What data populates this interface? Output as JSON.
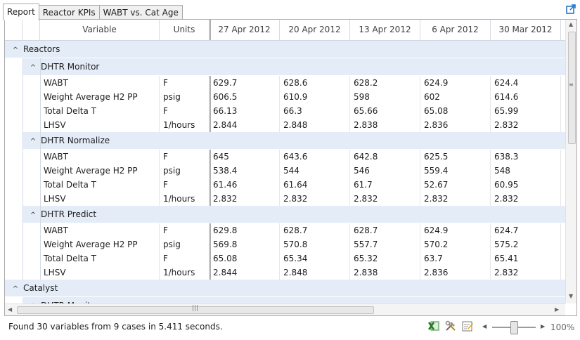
{
  "tabs": [
    {
      "label": "Report",
      "active": true
    },
    {
      "label": "Reactor KPIs",
      "active": false
    },
    {
      "label": "WABT vs. Cat Age",
      "active": false
    }
  ],
  "popout_icon": "popout-icon",
  "columns": {
    "variable": "Variable",
    "units": "Units",
    "dates": [
      "27 Apr 2012",
      "20 Apr 2012",
      "13 Apr 2012",
      "6 Apr 2012",
      "30 Mar 2012"
    ]
  },
  "groups": [
    {
      "label": "Reactors",
      "subgroups": [
        {
          "label": "DHTR Monitor",
          "rows": [
            {
              "variable": "WABT",
              "units": "F",
              "values": [
                "629.7",
                "628.6",
                "628.2",
                "624.9",
                "624.4"
              ]
            },
            {
              "variable": "Weight Average H2 PP",
              "units": "psig",
              "values": [
                "606.5",
                "610.9",
                "598",
                "602",
                "614.6"
              ]
            },
            {
              "variable": "Total Delta T",
              "units": "F",
              "values": [
                "66.13",
                "66.3",
                "65.66",
                "65.08",
                "65.99"
              ]
            },
            {
              "variable": "LHSV",
              "units": "1/hours",
              "values": [
                "2.844",
                "2.848",
                "2.838",
                "2.836",
                "2.832"
              ]
            }
          ]
        },
        {
          "label": "DHTR Normalize",
          "rows": [
            {
              "variable": "WABT",
              "units": "F",
              "values": [
                "645",
                "643.6",
                "642.8",
                "625.5",
                "638.3"
              ]
            },
            {
              "variable": "Weight Average H2 PP",
              "units": "psig",
              "values": [
                "538.4",
                "544",
                "546",
                "559.4",
                "548"
              ]
            },
            {
              "variable": "Total Delta T",
              "units": "F",
              "values": [
                "61.46",
                "61.64",
                "61.7",
                "52.67",
                "60.95"
              ]
            },
            {
              "variable": "LHSV",
              "units": "1/hours",
              "values": [
                "2.832",
                "2.832",
                "2.832",
                "2.832",
                "2.832"
              ]
            }
          ]
        },
        {
          "label": "DHTR Predict",
          "rows": [
            {
              "variable": "WABT",
              "units": "F",
              "values": [
                "629.8",
                "628.7",
                "628.7",
                "624.9",
                "624.7"
              ]
            },
            {
              "variable": "Weight Average H2 PP",
              "units": "psig",
              "values": [
                "569.8",
                "570.8",
                "557.7",
                "570.2",
                "575.2"
              ]
            },
            {
              "variable": "Total Delta T",
              "units": "F",
              "values": [
                "65.08",
                "65.34",
                "65.32",
                "63.7",
                "65.41"
              ]
            },
            {
              "variable": "LHSV",
              "units": "1/hours",
              "values": [
                "2.844",
                "2.848",
                "2.838",
                "2.836",
                "2.832"
              ]
            }
          ]
        }
      ]
    },
    {
      "label": "Catalyst",
      "subgroups": [
        {
          "label": "DHTR Monitor",
          "rows": []
        }
      ]
    }
  ],
  "status": {
    "text": "Found 30 variables from 9 cases in 5.411 seconds."
  },
  "toolbar": {
    "icons": [
      "export-excel-icon",
      "tools-icon",
      "edit-report-icon"
    ]
  },
  "zoom": {
    "label": "100%",
    "level_fraction": 0.5
  }
}
